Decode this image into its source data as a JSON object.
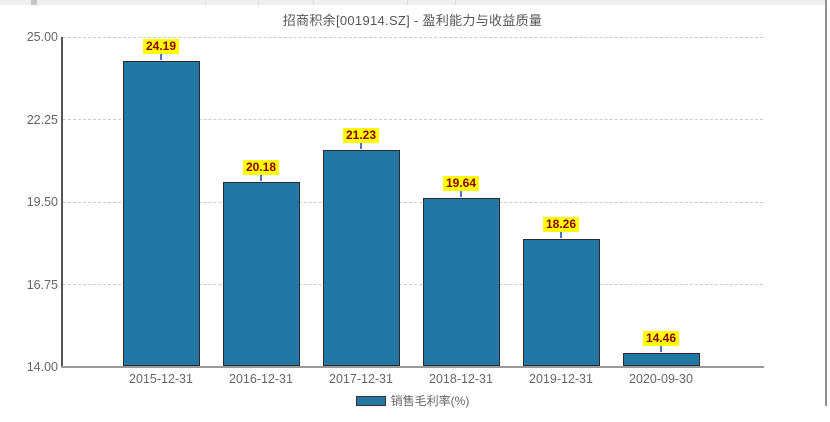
{
  "title": "招商积余[001914.SZ] - 盈利能力与收益质量",
  "chart_data": {
    "type": "bar",
    "title": "招商积余[001914.SZ] - 盈利能力与收益质量",
    "categories": [
      "2015-12-31",
      "2016-12-31",
      "2017-12-31",
      "2018-12-31",
      "2019-12-31",
      "2020-09-30"
    ],
    "series": [
      {
        "name": "销售毛利率(%)",
        "values": [
          24.19,
          20.18,
          21.23,
          19.64,
          18.26,
          14.46
        ]
      }
    ],
    "value_labels": [
      "24.19",
      "20.18",
      "21.23",
      "19.64",
      "18.26",
      "14.46"
    ],
    "xlabel": "",
    "ylabel": "",
    "ylim": [
      14.0,
      25.0
    ],
    "yticks": [
      "25.00",
      "22.25",
      "19.50",
      "16.75",
      "14.00"
    ],
    "ytick_values": [
      25.0,
      22.25,
      19.5,
      16.75,
      14.0
    ],
    "grid": "horizontal dashed",
    "legend_position": "bottom-center",
    "legend": [
      "销售毛利率(%)"
    ]
  },
  "colors": {
    "bar_fill": "#2277A4",
    "bar_border": "#2b2b2b",
    "value_label_bg": "#FFFF00",
    "value_label_text": "#8B0000",
    "connector": "#5470C6",
    "axis_y": "#555555",
    "axis_x": "#999999",
    "gridline": "#cccccc",
    "tick_text": "#666666",
    "title_text": "#555555"
  },
  "legend_label": "销售毛利率(%)"
}
